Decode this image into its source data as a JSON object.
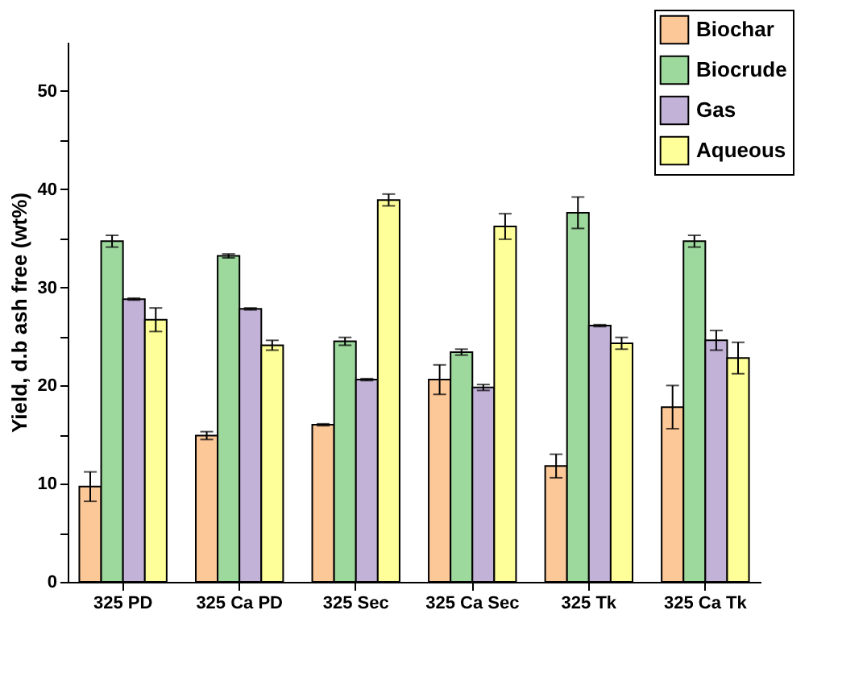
{
  "chart_data": {
    "type": "bar",
    "ylabel": "Yield, d.b ash free (wt%)",
    "categories": [
      "325 PD",
      "325 Ca PD",
      "325 Sec",
      "325 Ca Sec",
      "325 Tk",
      "325 Ca Tk"
    ],
    "series": [
      {
        "name": "Biochar",
        "color": "#fdc898",
        "values": [
          9.7,
          14.9,
          16.0,
          20.6,
          11.8,
          17.8
        ],
        "errors": [
          1.5,
          0.4,
          0.1,
          1.5,
          1.2,
          2.2
        ]
      },
      {
        "name": "Biocrude",
        "color": "#9dd89d",
        "values": [
          34.7,
          33.2,
          24.5,
          23.4,
          37.6,
          34.7
        ],
        "errors": [
          0.6,
          0.2,
          0.4,
          0.3,
          1.6,
          0.6
        ]
      },
      {
        "name": "Gas",
        "color": "#c3b2d8",
        "values": [
          28.8,
          27.8,
          20.6,
          19.8,
          26.1,
          24.6
        ],
        "errors": [
          0.1,
          0.1,
          0.1,
          0.3,
          0.1,
          1.0
        ]
      },
      {
        "name": "Aqueous",
        "color": "#ffff99",
        "values": [
          26.7,
          24.1,
          38.9,
          36.2,
          24.3,
          22.8
        ],
        "errors": [
          1.2,
          0.5,
          0.6,
          1.3,
          0.6,
          1.6
        ]
      }
    ],
    "ylim": [
      0,
      55
    ],
    "yticks": [
      0,
      {
        "value": 5,
        "label": null
      },
      10,
      {
        "value": 15,
        "label": null
      },
      20,
      {
        "value": 25,
        "label": null
      },
      30,
      {
        "value": 35,
        "label": null
      },
      40,
      {
        "value": 45,
        "label": null
      },
      50
    ],
    "legend": "top right",
    "grid": false
  }
}
